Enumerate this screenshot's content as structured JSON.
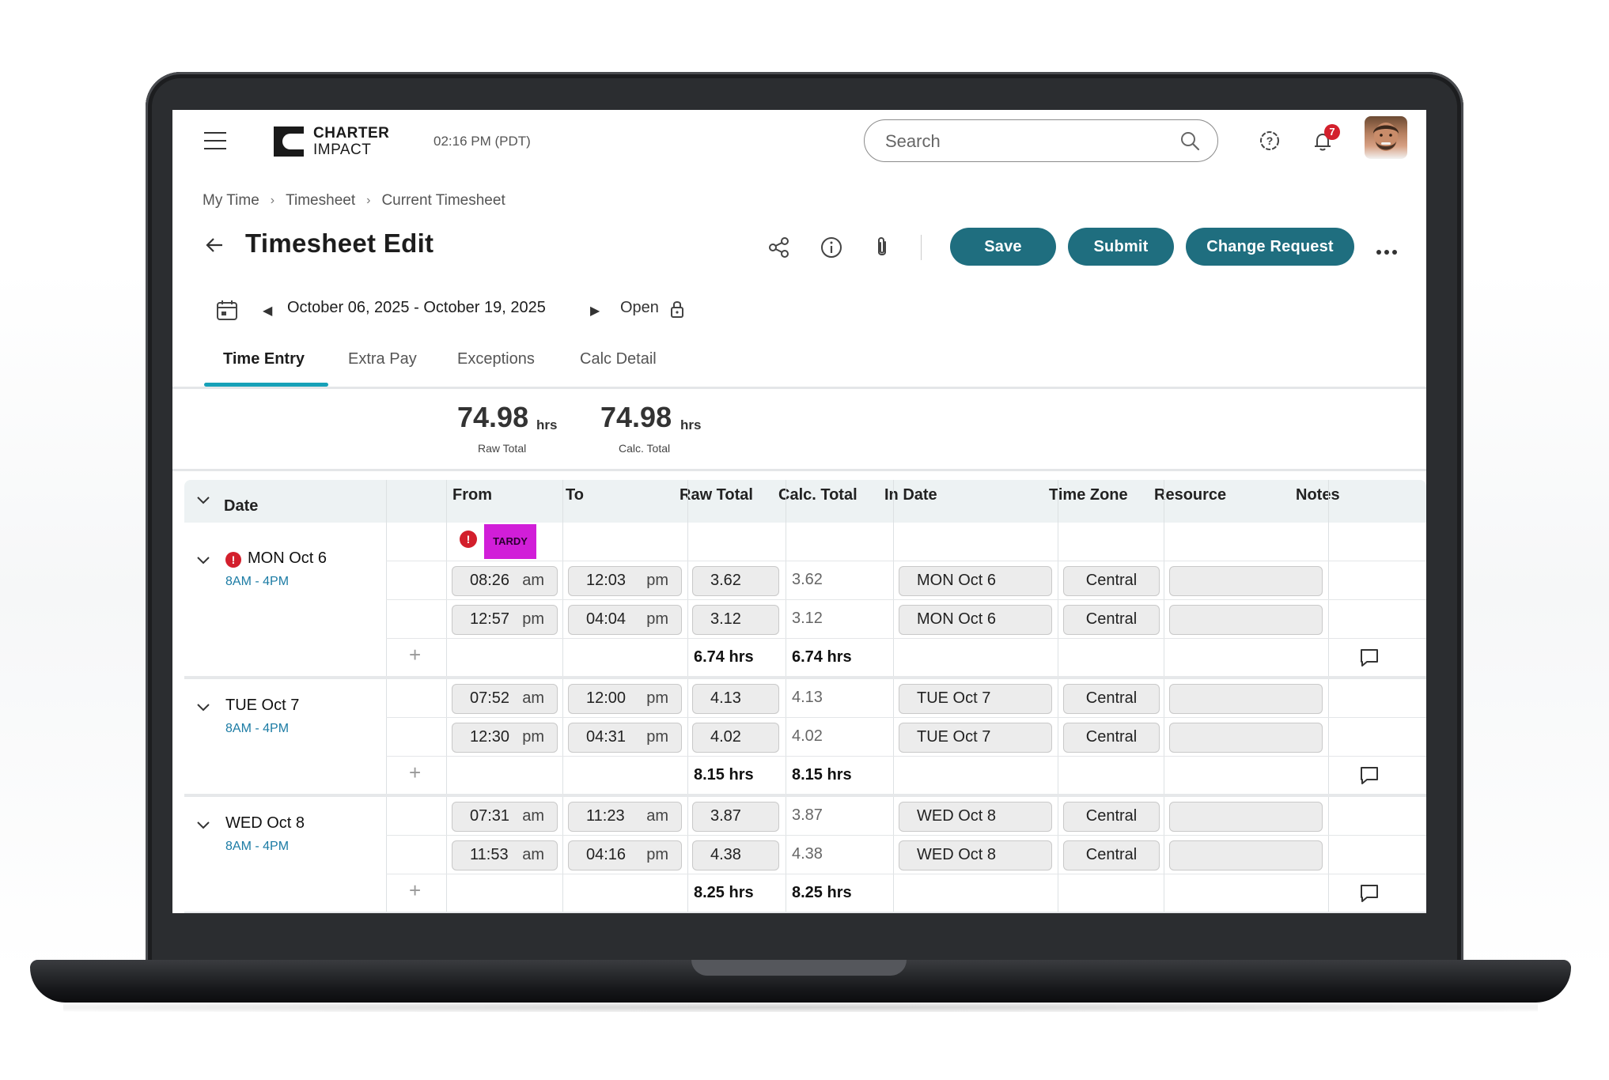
{
  "header": {
    "brand_line1": "CHARTER",
    "brand_line2": "IMPACT",
    "clock": "02:16 PM (PDT)",
    "search_placeholder": "Search",
    "notification_count": "7"
  },
  "breadcrumb": [
    "My Time",
    "Timesheet",
    "Current Timesheet"
  ],
  "page": {
    "title": "Timesheet Edit",
    "buttons": {
      "save": "Save",
      "submit": "Submit",
      "change_request": "Change Request"
    },
    "date_range": "October 06, 2025 - October 19, 2025",
    "status": "Open"
  },
  "tabs": [
    "Time Entry",
    "Extra Pay",
    "Exceptions",
    "Calc Detail"
  ],
  "totals": {
    "raw_value": "74.98",
    "raw_unit": "hrs",
    "raw_label": "Raw Total",
    "calc_value": "74.98",
    "calc_unit": "hrs",
    "calc_label": "Calc. Total"
  },
  "columns": {
    "date": "Date",
    "from": "From",
    "to": "To",
    "raw_total": "Raw Total",
    "calc_total": "Calc. Total",
    "in_date": "In Date",
    "time_zone": "Time Zone",
    "resource": "Resource",
    "notes": "Notes"
  },
  "days": [
    {
      "label": "MON Oct 6",
      "shift": "8AM - 4PM",
      "exception": "TARDY",
      "entries": [
        {
          "from": "08:26",
          "from_ampm": "am",
          "to": "12:03",
          "to_ampm": "pm",
          "raw": "3.62",
          "calc": "3.62",
          "in_date": "MON Oct 6",
          "tz": "Central",
          "resource": ""
        },
        {
          "from": "12:57",
          "from_ampm": "pm",
          "to": "04:04",
          "to_ampm": "pm",
          "raw": "3.12",
          "calc": "3.12",
          "in_date": "MON Oct 6",
          "tz": "Central",
          "resource": ""
        }
      ],
      "raw_total": "6.74 hrs",
      "calc_total": "6.74 hrs"
    },
    {
      "label": "TUE Oct 7",
      "shift": "8AM - 4PM",
      "entries": [
        {
          "from": "07:52",
          "from_ampm": "am",
          "to": "12:00",
          "to_ampm": "pm",
          "raw": "4.13",
          "calc": "4.13",
          "in_date": "TUE Oct 7",
          "tz": "Central",
          "resource": ""
        },
        {
          "from": "12:30",
          "from_ampm": "pm",
          "to": "04:31",
          "to_ampm": "pm",
          "raw": "4.02",
          "calc": "4.02",
          "in_date": "TUE Oct 7",
          "tz": "Central",
          "resource": ""
        }
      ],
      "raw_total": "8.15 hrs",
      "calc_total": "8.15 hrs"
    },
    {
      "label": "WED Oct 8",
      "shift": "8AM - 4PM",
      "entries": [
        {
          "from": "07:31",
          "from_ampm": "am",
          "to": "11:23",
          "to_ampm": "am",
          "raw": "3.87",
          "calc": "3.87",
          "in_date": "WED Oct 8",
          "tz": "Central",
          "resource": ""
        },
        {
          "from": "11:53",
          "from_ampm": "am",
          "to": "04:16",
          "to_ampm": "pm",
          "raw": "4.38",
          "calc": "4.38",
          "in_date": "WED Oct 8",
          "tz": "Central",
          "resource": ""
        }
      ],
      "raw_total": "8.25 hrs",
      "calc_total": "8.25 hrs"
    }
  ],
  "colors": {
    "primary_button": "#1f6e7f",
    "tab_accent": "#17a1b8",
    "shift_text": "#1b7ba4",
    "tardy_badge": "#d11ed8",
    "error_red": "#d31f2c"
  }
}
